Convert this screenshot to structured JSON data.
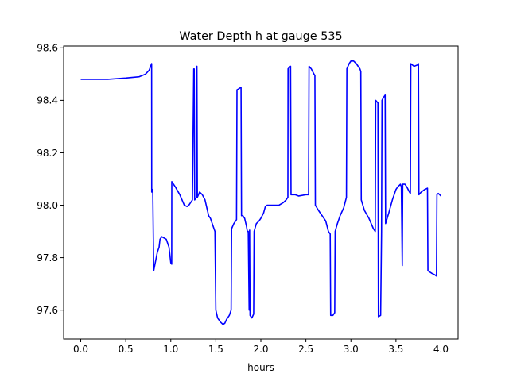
{
  "chart_data": {
    "type": "line",
    "title": "Water Depth h at gauge 535",
    "xlabel": "hours",
    "ylabel": "",
    "xlim": [
      -0.19,
      4.19
    ],
    "ylim": [
      97.49,
      98.607
    ],
    "xticks": [
      {
        "v": 0.0,
        "label": "0.0"
      },
      {
        "v": 0.5,
        "label": "0.5"
      },
      {
        "v": 1.0,
        "label": "1.0"
      },
      {
        "v": 1.5,
        "label": "1.5"
      },
      {
        "v": 2.0,
        "label": "2.0"
      },
      {
        "v": 2.5,
        "label": "2.5"
      },
      {
        "v": 3.0,
        "label": "3.0"
      },
      {
        "v": 3.5,
        "label": "3.5"
      },
      {
        "v": 4.0,
        "label": "4.0"
      }
    ],
    "yticks": [
      {
        "v": 97.6,
        "label": "97.6"
      },
      {
        "v": 97.8,
        "label": "97.8"
      },
      {
        "v": 98.0,
        "label": "98.0"
      },
      {
        "v": 98.2,
        "label": "98.2"
      },
      {
        "v": 98.4,
        "label": "98.4"
      },
      {
        "v": 98.6,
        "label": "98.6"
      }
    ],
    "grid": false,
    "series": [
      {
        "color": "#0000ff",
        "points": [
          [
            0.0,
            98.48
          ],
          [
            0.3,
            98.48
          ],
          [
            0.5,
            98.485
          ],
          [
            0.65,
            98.49
          ],
          [
            0.72,
            98.5
          ],
          [
            0.76,
            98.515
          ],
          [
            0.787,
            98.54
          ],
          [
            0.788,
            98.05
          ],
          [
            0.795,
            98.06
          ],
          [
            0.8,
            98.05
          ],
          [
            0.81,
            97.75
          ],
          [
            0.85,
            97.82
          ],
          [
            0.87,
            97.84
          ],
          [
            0.88,
            97.87
          ],
          [
            0.9,
            97.88
          ],
          [
            0.95,
            97.87
          ],
          [
            0.98,
            97.84
          ],
          [
            1.0,
            97.78
          ],
          [
            1.01,
            97.775
          ],
          [
            1.011,
            98.09
          ],
          [
            1.05,
            98.07
          ],
          [
            1.1,
            98.04
          ],
          [
            1.15,
            98.0
          ],
          [
            1.18,
            97.995
          ],
          [
            1.2,
            98.0
          ],
          [
            1.24,
            98.02
          ],
          [
            1.255,
            98.52
          ],
          [
            1.26,
            98.52
          ],
          [
            1.265,
            98.02
          ],
          [
            1.285,
            98.03
          ],
          [
            1.29,
            98.53
          ],
          [
            1.295,
            98.03
          ],
          [
            1.32,
            98.05
          ],
          [
            1.35,
            98.04
          ],
          [
            1.38,
            98.02
          ],
          [
            1.4,
            97.99
          ],
          [
            1.42,
            97.96
          ],
          [
            1.44,
            97.95
          ],
          [
            1.47,
            97.92
          ],
          [
            1.49,
            97.9
          ],
          [
            1.5,
            97.6
          ],
          [
            1.52,
            97.57
          ],
          [
            1.55,
            97.555
          ],
          [
            1.58,
            97.545
          ],
          [
            1.6,
            97.55
          ],
          [
            1.62,
            97.565
          ],
          [
            1.65,
            97.58
          ],
          [
            1.67,
            97.6
          ],
          [
            1.675,
            97.91
          ],
          [
            1.7,
            97.93
          ],
          [
            1.73,
            97.945
          ],
          [
            1.735,
            98.44
          ],
          [
            1.76,
            98.445
          ],
          [
            1.78,
            98.45
          ],
          [
            1.785,
            97.96
          ],
          [
            1.8,
            97.96
          ],
          [
            1.82,
            97.95
          ],
          [
            1.84,
            97.92
          ],
          [
            1.85,
            97.9
          ],
          [
            1.86,
            97.9
          ],
          [
            1.87,
            97.6
          ],
          [
            1.875,
            97.905
          ],
          [
            1.88,
            97.58
          ],
          [
            1.9,
            97.57
          ],
          [
            1.92,
            97.585
          ],
          [
            1.925,
            97.9
          ],
          [
            1.95,
            97.93
          ],
          [
            1.98,
            97.94
          ],
          [
            2.0,
            97.95
          ],
          [
            2.03,
            97.97
          ],
          [
            2.05,
            97.995
          ],
          [
            2.07,
            98.0
          ],
          [
            2.1,
            98.0
          ],
          [
            2.2,
            98.0
          ],
          [
            2.25,
            98.01
          ],
          [
            2.28,
            98.02
          ],
          [
            2.3,
            98.03
          ],
          [
            2.302,
            98.52
          ],
          [
            2.33,
            98.53
          ],
          [
            2.335,
            98.04
          ],
          [
            2.38,
            98.04
          ],
          [
            2.42,
            98.035
          ],
          [
            2.5,
            98.04
          ],
          [
            2.52,
            98.04
          ],
          [
            2.53,
            98.04
          ],
          [
            2.535,
            98.53
          ],
          [
            2.56,
            98.52
          ],
          [
            2.59,
            98.5
          ],
          [
            2.6,
            98.495
          ],
          [
            2.605,
            98.0
          ],
          [
            2.64,
            97.98
          ],
          [
            2.68,
            97.96
          ],
          [
            2.72,
            97.94
          ],
          [
            2.75,
            97.9
          ],
          [
            2.77,
            97.89
          ],
          [
            2.775,
            97.58
          ],
          [
            2.8,
            97.58
          ],
          [
            2.82,
            97.59
          ],
          [
            2.825,
            97.9
          ],
          [
            2.85,
            97.93
          ],
          [
            2.88,
            97.96
          ],
          [
            2.92,
            97.99
          ],
          [
            2.95,
            98.03
          ],
          [
            2.955,
            98.52
          ],
          [
            2.98,
            98.54
          ],
          [
            3.0,
            98.55
          ],
          [
            3.03,
            98.55
          ],
          [
            3.06,
            98.54
          ],
          [
            3.1,
            98.52
          ],
          [
            3.11,
            98.51
          ],
          [
            3.115,
            98.02
          ],
          [
            3.15,
            97.98
          ],
          [
            3.2,
            97.95
          ],
          [
            3.25,
            97.91
          ],
          [
            3.27,
            97.9
          ],
          [
            3.275,
            98.4
          ],
          [
            3.3,
            98.39
          ],
          [
            3.305,
            97.575
          ],
          [
            3.33,
            97.58
          ],
          [
            3.34,
            97.9
          ],
          [
            3.345,
            98.4
          ],
          [
            3.36,
            98.41
          ],
          [
            3.38,
            98.42
          ],
          [
            3.385,
            97.93
          ],
          [
            3.42,
            97.97
          ],
          [
            3.46,
            98.02
          ],
          [
            3.5,
            98.06
          ],
          [
            3.52,
            98.07
          ],
          [
            3.55,
            98.08
          ],
          [
            3.56,
            98.07
          ],
          [
            3.57,
            97.77
          ],
          [
            3.575,
            98.08
          ],
          [
            3.6,
            98.08
          ],
          [
            3.62,
            98.07
          ],
          [
            3.65,
            98.05
          ],
          [
            3.66,
            98.045
          ],
          [
            3.665,
            98.54
          ],
          [
            3.7,
            98.53
          ],
          [
            3.74,
            98.535
          ],
          [
            3.75,
            98.54
          ],
          [
            3.755,
            98.04
          ],
          [
            3.78,
            98.05
          ],
          [
            3.82,
            98.06
          ],
          [
            3.85,
            98.065
          ],
          [
            3.855,
            97.75
          ],
          [
            3.9,
            97.74
          ],
          [
            3.93,
            97.735
          ],
          [
            3.95,
            97.73
          ],
          [
            3.955,
            98.04
          ],
          [
            3.97,
            98.045
          ],
          [
            4.0,
            98.035
          ]
        ]
      }
    ]
  }
}
